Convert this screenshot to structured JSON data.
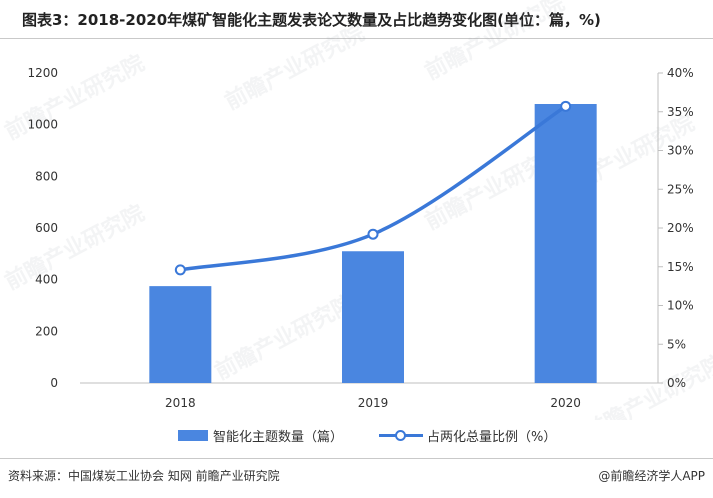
{
  "title": "图表3：2018-2020年煤矿智能化主题发表论文数量及占比趋势变化图(单位：篇，%)",
  "source": "资料来源：中国煤炭工业协会 知网 前瞻产业研究院",
  "brand": "@前瞻经济学人APP",
  "watermark": "前瞻产业研究院",
  "colors": {
    "bar": "#4a86e0",
    "line": "#3a78d8",
    "axis": "#bfbfbf"
  },
  "legend": {
    "bar_label": "智能化主题数量（篇）",
    "line_label": "占两化总量比例（%）"
  },
  "chart_data": {
    "type": "bar",
    "categories": [
      "2018",
      "2019",
      "2020"
    ],
    "series": [
      {
        "name": "智能化主题数量（篇）",
        "type": "bar",
        "axis": "left",
        "values": [
          375,
          510,
          1080
        ]
      },
      {
        "name": "占两化总量比例（%）",
        "type": "line",
        "axis": "right",
        "values": [
          14.6,
          19.2,
          35.7
        ]
      }
    ],
    "y_left": {
      "lim": [
        0,
        1200
      ],
      "ticks": [
        "0",
        "200",
        "400",
        "600",
        "800",
        "1000",
        "1200"
      ]
    },
    "y_right": {
      "lim": [
        0,
        40
      ],
      "ticks": [
        "0%",
        "5%",
        "10%",
        "15%",
        "20%",
        "25%",
        "30%",
        "35%",
        "40%"
      ]
    },
    "grid": false,
    "legend_position": "bottom"
  }
}
